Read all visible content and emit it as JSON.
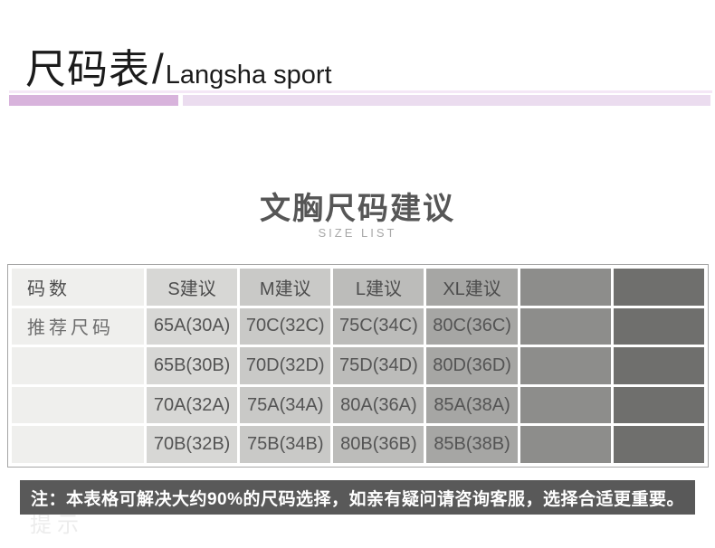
{
  "header": {
    "title_cn": "尺码表",
    "separator": "/",
    "title_en": "Langsha sport"
  },
  "section": {
    "title": "文胸尺码建议",
    "subtitle": "SIZE LIST"
  },
  "size_table": {
    "columns": [
      "码数",
      "S建议",
      "M建议",
      "L建议",
      "XL建议",
      "",
      ""
    ],
    "rows": [
      {
        "label": "推荐尺码",
        "values": [
          "65A(30A)",
          "70C(32C)",
          "75C(34C)",
          "80C(36C)",
          "",
          ""
        ]
      },
      {
        "label": "",
        "values": [
          "65B(30B)",
          "70D(32D)",
          "75D(34D)",
          "80D(36D)",
          "",
          ""
        ]
      },
      {
        "label": "",
        "values": [
          "70A(32A)",
          "75A(34A)",
          "80A(36A)",
          "85A(38A)",
          "",
          ""
        ]
      },
      {
        "label": "",
        "values": [
          "70B(32B)",
          "75B(34B)",
          "80B(36B)",
          "85B(38B)",
          "",
          ""
        ]
      }
    ]
  },
  "note": {
    "text": "注：本表格可解决大约90%的尺码选择，如亲有疑问请咨询客服，选择合适更重要。"
  },
  "footer_hint": "提示",
  "colors": {
    "accent_bar_dark": "#d8b3dc",
    "accent_bar_light": "#ebdcef",
    "divider_line": "#f4e7f6",
    "table_border": "#a6a6a6",
    "column_backgrounds": [
      "#efefed",
      "#d7d7d5",
      "#c9c9c7",
      "#bcbcba",
      "#a6a6a4",
      "#8d8d8b",
      "#6f6f6d"
    ],
    "note_background": "#595959",
    "note_text": "#ffffff",
    "section_title_text": "#565656"
  }
}
